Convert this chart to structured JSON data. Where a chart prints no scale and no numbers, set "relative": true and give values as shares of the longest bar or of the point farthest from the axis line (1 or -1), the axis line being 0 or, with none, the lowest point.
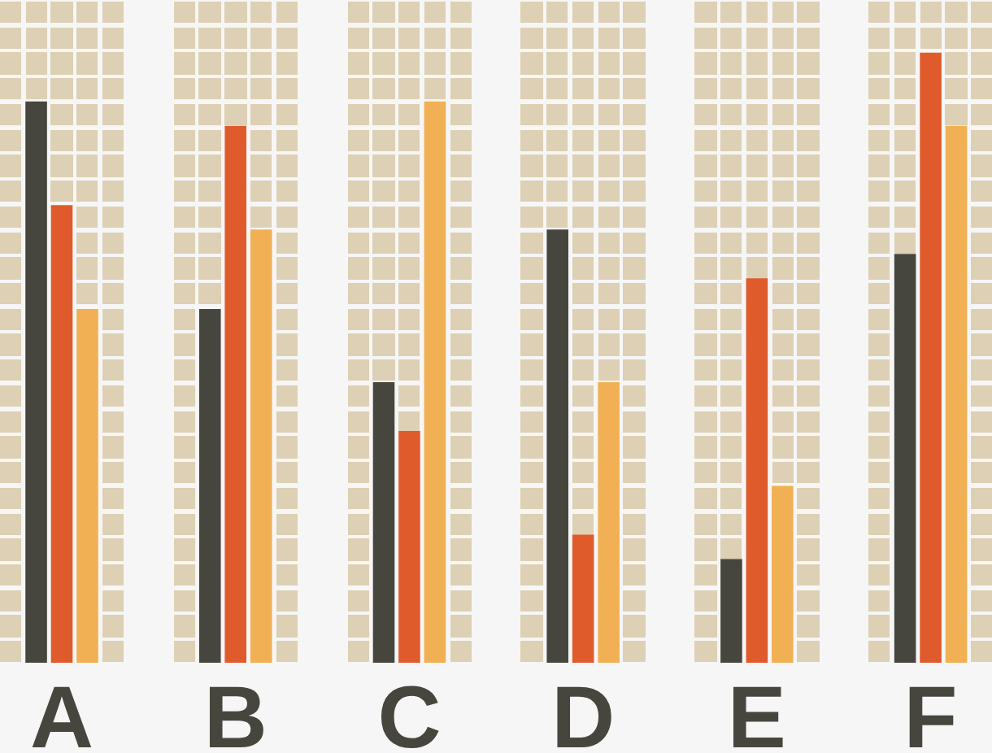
{
  "chart_data": {
    "type": "bar",
    "relative": true,
    "categories": [
      "A",
      "B",
      "C",
      "D",
      "E",
      "F"
    ],
    "series": [
      {
        "color": "#47463e",
        "values": [
          0.92,
          0.58,
          0.46,
          0.71,
          0.17,
          0.67
        ]
      },
      {
        "color": "#df5b2c",
        "values": [
          0.75,
          0.88,
          0.38,
          0.21,
          0.63,
          1
        ]
      },
      {
        "color": "#f1b054",
        "values": [
          0.58,
          0.71,
          0.92,
          0.46,
          0.29,
          0.88
        ]
      }
    ]
  }
}
